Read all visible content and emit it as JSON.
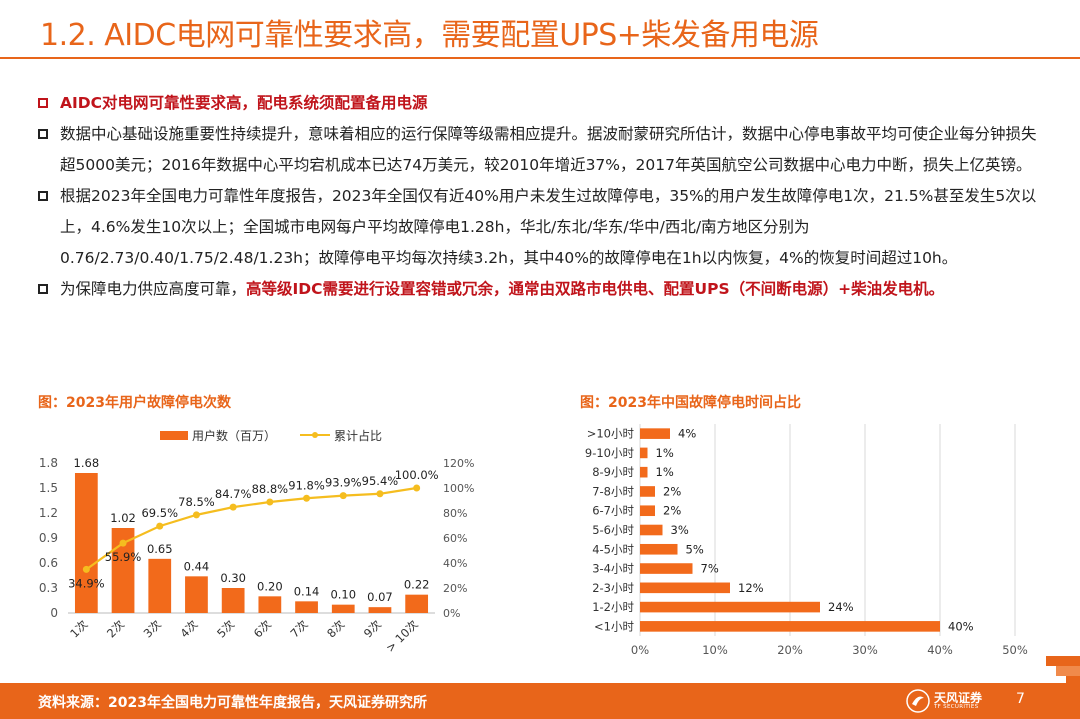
{
  "title": "1.2. AIDC电网可靠性要求高，需要配置UPS+柴发备用电源",
  "bullets": {
    "b1": "AIDC对电网可靠性要求高，配电系统须配置备用电源",
    "b2": "数据中心基础设施重要性持续提升，意味着相应的运行保障等级需相应提升。据波耐蒙研究所估计，数据中心停电事故平均可使企业每分钟损失超5000美元；2016年数据中心平均宕机成本已达74万美元，较2010年增近37%，2017年英国航空公司数据中心电力中断，损失上亿英镑。",
    "b3": "根据2023年全国电力可靠性年度报告，2023年全国仅有近40%用户未发生过故障停电，35%的用户发生故障停电1次，21.5%甚至发生5次以上，4.6%发生10次以上；全国城市电网每户平均故障停电1.28h，华北/东北/华东/华中/西北/南方地区分别为0.76/2.73/0.40/1.75/2.48/1.23h；故障停电平均每次持续3.2h，其中40%的故障停电在1h以内恢复，4%的恢复时间超过10h。",
    "b4_prefix": "为保障电力供应高度可靠，",
    "b4_highlight": "高等级IDC需要进行设置容错或冗余，通常由双路市电供电、配置UPS（不间断电源）+柴油发电机。"
  },
  "colors": {
    "accent": "#e8651a",
    "bar": "#f26a1b",
    "line": "#f5bd1f",
    "red": "#c0141b"
  },
  "chart_data": [
    {
      "type": "bar",
      "title": "图：2023年用户故障停电次数",
      "categories": [
        "1次",
        "2次",
        "3次",
        "4次",
        "5次",
        "6次",
        "7次",
        "8次",
        "9次",
        "> 10次"
      ],
      "series": [
        {
          "name": "用户数（百万）",
          "type": "bar",
          "axis": "left",
          "values": [
            1.68,
            1.02,
            0.65,
            0.44,
            0.3,
            0.2,
            0.14,
            0.1,
            0.07,
            0.22
          ],
          "labels": [
            "1.68",
            "1.02",
            "0.65",
            "0.44",
            "0.30",
            "0.20",
            "0.14",
            "0.10",
            "0.07",
            "0.22"
          ]
        },
        {
          "name": "累计占比",
          "type": "line",
          "axis": "right",
          "values": [
            34.9,
            55.9,
            69.5,
            78.5,
            84.7,
            88.8,
            91.8,
            93.9,
            95.4,
            100.0
          ],
          "labels": [
            "34.9%",
            "55.9%",
            "69.5%",
            "78.5%",
            "84.7%",
            "88.8%",
            "91.8%",
            "93.9%",
            "95.4%",
            "100.0%"
          ]
        }
      ],
      "ylim": [
        0,
        1.8
      ],
      "yticks": [
        "0",
        "0.3",
        "0.6",
        "0.9",
        "1.2",
        "1.5",
        "1.8"
      ],
      "y2lim": [
        0,
        120
      ],
      "y2ticks": [
        "0%",
        "20%",
        "40%",
        "60%",
        "80%",
        "100%",
        "120%"
      ],
      "legend": "top"
    },
    {
      "type": "bar",
      "orientation": "horizontal",
      "title": "图：2023年中国故障停电时间占比",
      "categories": [
        ">10小时",
        "9-10小时",
        "8-9小时",
        "7-8小时",
        "6-7小时",
        "5-6小时",
        "4-5小时",
        "3-4小时",
        "2-3小时",
        "1-2小时",
        "<1小时"
      ],
      "values": [
        4,
        1,
        1,
        2,
        2,
        3,
        5,
        7,
        12,
        24,
        40
      ],
      "labels": [
        "4%",
        "1%",
        "1%",
        "2%",
        "2%",
        "3%",
        "5%",
        "7%",
        "12%",
        "24%",
        "40%"
      ],
      "xlim": [
        0,
        50
      ],
      "xticks": [
        "0%",
        "10%",
        "20%",
        "30%",
        "40%",
        "50%"
      ],
      "grid": true
    }
  ],
  "footer": {
    "source": "资料来源：2023年全国电力可靠性年度报告，天风证券研究所",
    "logo_cn": "天风证券",
    "logo_en": "TF SECURITIES",
    "page": "7"
  }
}
